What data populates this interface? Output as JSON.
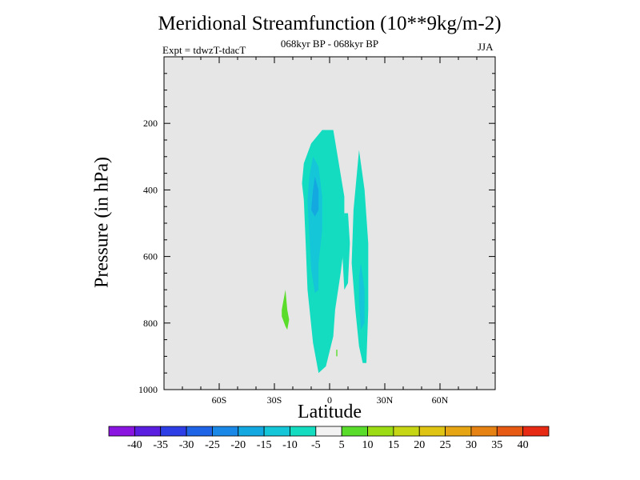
{
  "chart_data": {
    "type": "heatmap",
    "title": "Meridional Streamfunction (10**9kg/m-2)",
    "subtitle": "068kyr BP - 068kyr BP",
    "expt_label": "Expt = tdwzT-tdacT",
    "season": "JJA",
    "xlabel": "Latitude",
    "ylabel": "Pressure (in hPa)",
    "xlim": [
      -90,
      90
    ],
    "ylim": [
      0,
      1000
    ],
    "x_ticks": [
      {
        "value": -60,
        "label": "60S"
      },
      {
        "value": -30,
        "label": "30S"
      },
      {
        "value": 0,
        "label": "0"
      },
      {
        "value": 30,
        "label": "30N"
      },
      {
        "value": 60,
        "label": "60N"
      }
    ],
    "y_ticks": [
      {
        "value": 200,
        "label": "200"
      },
      {
        "value": 400,
        "label": "400"
      },
      {
        "value": 600,
        "label": "600"
      },
      {
        "value": 800,
        "label": "800"
      },
      {
        "value": 1000,
        "label": "1000"
      }
    ],
    "background_color": "#e6e6e6",
    "colorbar": {
      "labels": [
        "-40",
        "-35",
        "-30",
        "-25",
        "-20",
        "-15",
        "-10",
        "-5",
        "5",
        "10",
        "15",
        "20",
        "25",
        "30",
        "35",
        "40"
      ],
      "colors": [
        "#8a15e0",
        "#5a1ee0",
        "#2e3ee6",
        "#1f63e6",
        "#1a88e6",
        "#14a8e0",
        "#14c6d8",
        "#14dcc0",
        "#f2f2f2",
        "#5add2a",
        "#9cdc14",
        "#c6d614",
        "#e0c414",
        "#e6a614",
        "#e68214",
        "#e65a14",
        "#e62a14"
      ]
    },
    "regions": [
      {
        "level": "-10 to -5",
        "color": "#14dcc0",
        "points": [
          [
            -4,
            220
          ],
          [
            2,
            220
          ],
          [
            5,
            320
          ],
          [
            8,
            420
          ],
          [
            8,
            560
          ],
          [
            6,
            650
          ],
          [
            3,
            760
          ],
          [
            2,
            840
          ],
          [
            -2,
            930
          ],
          [
            -6,
            950
          ],
          [
            -9,
            860
          ],
          [
            -12,
            700
          ],
          [
            -13,
            560
          ],
          [
            -14,
            430
          ],
          [
            -15,
            380
          ],
          [
            -14,
            320
          ],
          [
            -10,
            260
          ]
        ]
      },
      {
        "level": "-10 to -5",
        "color": "#14dcc0",
        "points": [
          [
            8,
            470
          ],
          [
            10,
            470
          ],
          [
            11,
            560
          ],
          [
            10,
            680
          ],
          [
            8,
            700
          ],
          [
            7,
            600
          ]
        ]
      },
      {
        "level": "-10 to -5",
        "color": "#14dcc0",
        "points": [
          [
            16,
            280
          ],
          [
            19,
            400
          ],
          [
            21,
            560
          ],
          [
            21,
            760
          ],
          [
            20,
            920
          ],
          [
            18,
            920
          ],
          [
            16,
            870
          ],
          [
            14,
            760
          ],
          [
            12,
            620
          ],
          [
            13,
            460
          ]
        ]
      },
      {
        "level": "-15 to -10",
        "color": "#14c6d8",
        "points": [
          [
            -9,
            300
          ],
          [
            -6,
            330
          ],
          [
            -4,
            420
          ],
          [
            -4,
            520
          ],
          [
            -6,
            620
          ],
          [
            -6,
            700
          ],
          [
            -8,
            710
          ],
          [
            -10,
            640
          ],
          [
            -11,
            540
          ],
          [
            -12,
            430
          ],
          [
            -11,
            360
          ]
        ]
      },
      {
        "level": "-20 to -15",
        "color": "#14a8e0",
        "points": [
          [
            -8,
            360
          ],
          [
            -6,
            400
          ],
          [
            -6,
            460
          ],
          [
            -8,
            480
          ],
          [
            -10,
            460
          ],
          [
            -9,
            400
          ]
        ]
      },
      {
        "level": "-15 to -10",
        "color": "#14c6d8",
        "points": [
          [
            17,
            620
          ],
          [
            19,
            700
          ],
          [
            19,
            800
          ],
          [
            17,
            820
          ],
          [
            16,
            740
          ],
          [
            16,
            660
          ]
        ]
      },
      {
        "level": "5 to 10",
        "color": "#5add2a",
        "points": [
          [
            -24,
            700
          ],
          [
            -23,
            760
          ],
          [
            -22,
            790
          ],
          [
            -23,
            820
          ],
          [
            -24,
            810
          ],
          [
            -26,
            780
          ],
          [
            -26,
            760
          ],
          [
            -25,
            730
          ]
        ]
      },
      {
        "level": "5 to 10",
        "color": "#5add2a",
        "points": [
          [
            3.6,
            880
          ],
          [
            4.2,
            880
          ],
          [
            4.2,
            900
          ],
          [
            3.6,
            900
          ]
        ]
      }
    ]
  }
}
